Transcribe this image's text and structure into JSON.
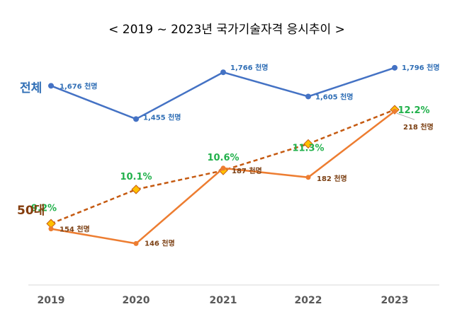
{
  "chart_data": {
    "type": "line",
    "title": "< 2019 ~ 2023년 국가기술자격 응시추이 >",
    "categories": [
      "2019",
      "2020",
      "2021",
      "2022",
      "2023"
    ],
    "series": [
      {
        "name": "전체",
        "values": [
          1676,
          1455,
          1766,
          1605,
          1796
        ],
        "labels": [
          "1,676 천명",
          "1,455 천명",
          "1,766 천명",
          "1,605 천명",
          "1,796 천명"
        ],
        "color": "#4472c4"
      },
      {
        "name": "50대",
        "values": [
          154,
          146,
          187,
          182,
          218
        ],
        "labels": [
          "154 천명",
          "146 천명",
          "187 천명",
          "182 천명",
          "218 천명"
        ],
        "color": "#ed7d31"
      },
      {
        "name": "",
        "values": [
          9.2,
          10.1,
          10.6,
          11.3,
          12.2
        ],
        "labels": [
          "9.2%",
          "10.1%",
          "10.6%",
          "11.3%",
          "12.2%"
        ],
        "color": "#c55a11",
        "marker_color": "#ffc000"
      }
    ],
    "grid": false,
    "legend": "none"
  }
}
